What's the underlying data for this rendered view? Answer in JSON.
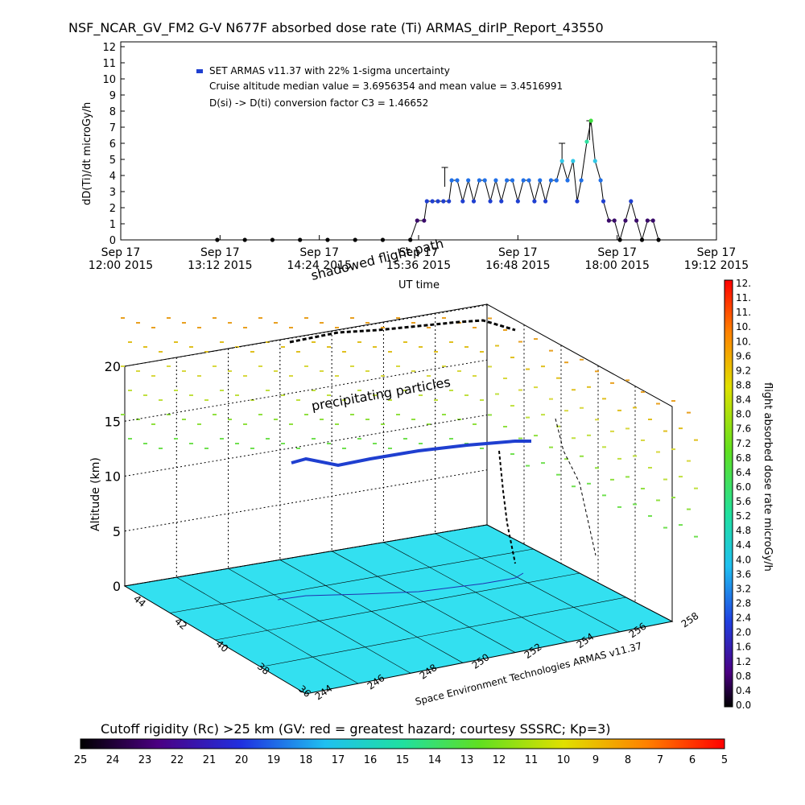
{
  "header": {
    "title": "NSF_NCAR_GV_FM2 G-V     N677F  absorbed dose rate (Ti) ARMAS_dirIP_Report_43550"
  },
  "chart_data": [
    {
      "type": "scatter",
      "panel": "time-series",
      "ylabel": "dD(Ti)/dt microGy/h",
      "xlabel": "UT time",
      "ylim": [
        0,
        12
      ],
      "yticks": [
        0,
        1,
        2,
        3,
        4,
        5,
        6,
        7,
        8,
        9,
        10,
        11,
        12
      ],
      "xticks": [
        {
          "date": "Sep 17",
          "time": "12:00 2015"
        },
        {
          "date": "Sep 17",
          "time": "13:12 2015"
        },
        {
          "date": "Sep 17",
          "time": "14:24 2015"
        },
        {
          "date": "Sep 17",
          "time": "15:36 2015"
        },
        {
          "date": "Sep 17",
          "time": "16:48 2015"
        },
        {
          "date": "Sep 17",
          "time": "18:00 2015"
        },
        {
          "date": "Sep 17",
          "time": "19:12 2015"
        }
      ],
      "legend": {
        "line1": "SET ARMAS v11.37 with 22% 1-sigma uncertainty",
        "line2": "Cruise altitude median value = 3.6956354 and mean value = 3.4516991",
        "line3": "D(si) -> D(ti) conversion factor C3 = 1.46652",
        "marker_color": "#1f3fd0"
      },
      "overlay_label": "shadowed flight path",
      "series": [
        {
          "points": [
            [
              "13:10",
              0
            ],
            [
              "13:30",
              0
            ],
            [
              "13:50",
              0
            ],
            [
              "14:10",
              0
            ],
            [
              "14:30",
              0
            ],
            [
              "14:50",
              0
            ],
            [
              "15:10",
              0
            ],
            [
              "15:30",
              0
            ],
            [
              "15:35",
              1.2
            ],
            [
              "15:40",
              1.2
            ],
            [
              "15:42",
              2.4
            ],
            [
              "15:46",
              2.4
            ],
            [
              "15:50",
              2.4
            ],
            [
              "15:54",
              2.4
            ],
            [
              "15:58",
              2.4
            ],
            [
              "16:00",
              3.7
            ],
            [
              "16:04",
              3.7
            ],
            [
              "16:08",
              2.4
            ],
            [
              "16:12",
              3.7
            ],
            [
              "16:16",
              2.4
            ],
            [
              "16:20",
              3.7
            ],
            [
              "16:24",
              3.7
            ],
            [
              "16:28",
              2.4
            ],
            [
              "16:32",
              3.7
            ],
            [
              "16:36",
              2.4
            ],
            [
              "16:40",
              3.7
            ],
            [
              "16:44",
              3.7
            ],
            [
              "16:48",
              2.4
            ],
            [
              "16:52",
              3.7
            ],
            [
              "16:56",
              3.7
            ],
            [
              "17:00",
              2.4
            ],
            [
              "17:04",
              3.7
            ],
            [
              "17:08",
              2.4
            ],
            [
              "17:12",
              3.7
            ],
            [
              "17:16",
              3.7
            ],
            [
              "17:20",
              4.9
            ],
            [
              "17:24",
              3.7
            ],
            [
              "17:28",
              4.9
            ],
            [
              "17:31",
              2.4
            ],
            [
              "17:34",
              3.7
            ],
            [
              "17:38",
              6.1
            ],
            [
              "17:41",
              7.4
            ],
            [
              "17:44",
              4.9
            ],
            [
              "17:48",
              3.7
            ],
            [
              "17:50",
              2.4
            ],
            [
              "17:54",
              1.2
            ],
            [
              "17:58",
              1.2
            ],
            [
              "18:02",
              0
            ],
            [
              "18:06",
              1.2
            ],
            [
              "18:10",
              2.4
            ],
            [
              "18:14",
              1.2
            ],
            [
              "18:18",
              0
            ],
            [
              "18:22",
              1.2
            ],
            [
              "18:26",
              1.2
            ],
            [
              "18:30",
              0
            ]
          ],
          "error_bars": [
            [
              "15:55",
              4.5
            ],
            [
              "17:20",
              6.0
            ],
            [
              "17:40",
              7.4
            ]
          ]
        }
      ]
    },
    {
      "type": "scatter",
      "panel": "3d-flight-track",
      "zlabel": "Altitude (km)",
      "zticks": [
        0,
        5,
        10,
        15,
        20
      ],
      "lon_ticks": [
        244,
        246,
        248,
        250,
        252,
        254,
        256,
        258
      ],
      "lat_ticks": [
        36,
        38,
        40,
        42,
        44
      ],
      "annotation": "precipitating particles",
      "footer_label": "Space Environment Technologies ARMAS v11.37",
      "colorbar": {
        "label": "flight absorbed dose rate microGy/h",
        "ticks": [
          "0.0",
          "0.4",
          "0.8",
          "1.2",
          "1.6",
          "2.0",
          "2.4",
          "2.8",
          "3.2",
          "3.6",
          "4.0",
          "4.4",
          "4.8",
          "5.2",
          "5.6",
          "6.0",
          "6.4",
          "6.8",
          "7.2",
          "7.6",
          "8.0",
          "8.4",
          "8.8",
          "9.2",
          "9.6",
          "10.",
          "10.",
          "11.",
          "11.",
          "12."
        ]
      },
      "ground_color": "#33e0f0"
    },
    {
      "type": "heatmap",
      "panel": "cutoff-rigidity-colorbar",
      "title": "Cutoff rigidity (Rc) >25 km (GV: red = greatest hazard; courtesy SSSRC; Kp=3)",
      "ticks": [
        "25",
        "24",
        "23",
        "22",
        "21",
        "20",
        "19",
        "18",
        "17",
        "16",
        "15",
        "14",
        "13",
        "12",
        "11",
        "10",
        "9",
        "8",
        "7",
        "6",
        "5"
      ]
    }
  ]
}
